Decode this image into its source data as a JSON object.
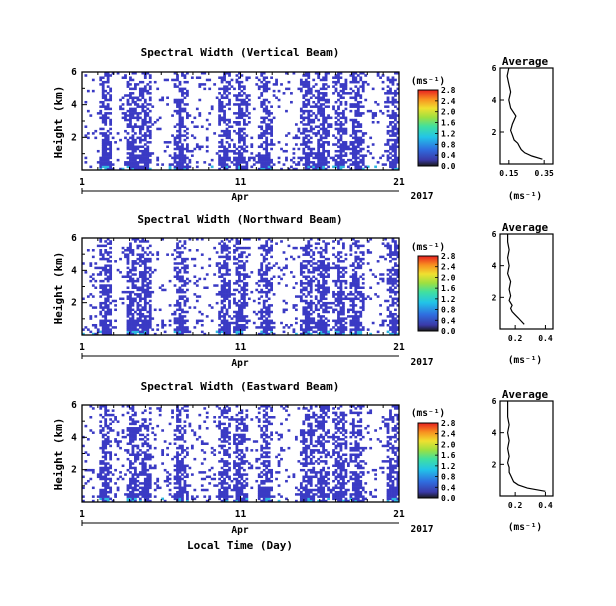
{
  "chart_data": [
    {
      "type": "heatmap",
      "title": "Spectral Width (Vertical Beam)",
      "ylabel": "Height (km)",
      "yticks": [
        "6",
        "4",
        "2"
      ],
      "xticks": [
        "1",
        "11",
        "21"
      ],
      "month_label": "Apr",
      "year_label": "2017",
      "colorbar": {
        "unit": "(ms⁻¹)",
        "ticks": [
          "2.8",
          "2.4",
          "2.0",
          "1.6",
          "1.2",
          "0.8",
          "0.4",
          "0.0"
        ],
        "range": [
          0,
          2.8
        ]
      },
      "x_range_days": [
        1,
        21
      ],
      "y_range_km": [
        0,
        6
      ],
      "dominant_value_ms": 0.3,
      "average_profile": {
        "title": "Average",
        "xlabel": "(ms⁻¹)",
        "xtick_labels": [
          "0.15",
          "0.35"
        ],
        "xticks": [
          0.15,
          0.35
        ],
        "xlim": [
          0.1,
          0.4
        ],
        "yticks": [
          "6",
          "4",
          "2"
        ],
        "ylim": [
          0,
          6
        ],
        "height_km": [
          0.3,
          0.5,
          0.7,
          0.9,
          1.1,
          1.3,
          1.5,
          1.8,
          2.1,
          2.5,
          3.0,
          3.5,
          4.0,
          4.5,
          5.0,
          5.5,
          6.0
        ],
        "width_ms": [
          0.34,
          0.28,
          0.24,
          0.22,
          0.21,
          0.2,
          0.18,
          0.17,
          0.16,
          0.17,
          0.19,
          0.16,
          0.15,
          0.16,
          0.15,
          0.14,
          0.15
        ]
      }
    },
    {
      "type": "heatmap",
      "title": "Spectral Width (Northward Beam)",
      "ylabel": "Height (km)",
      "yticks": [
        "6",
        "4",
        "2"
      ],
      "xticks": [
        "1",
        "11",
        "21"
      ],
      "month_label": "Apr",
      "year_label": "2017",
      "colorbar": {
        "unit": "(ms⁻¹)",
        "ticks": [
          "2.8",
          "2.4",
          "2.0",
          "1.6",
          "1.2",
          "0.8",
          "0.4",
          "0.0"
        ],
        "range": [
          0,
          2.8
        ]
      },
      "x_range_days": [
        1,
        21
      ],
      "y_range_km": [
        0,
        6
      ],
      "dominant_value_ms": 0.3,
      "average_profile": {
        "title": "Average",
        "xlabel": "(ms⁻¹)",
        "xtick_labels": [
          "0.2",
          "0.4"
        ],
        "xticks": [
          0.2,
          0.4
        ],
        "xlim": [
          0.1,
          0.45
        ],
        "yticks": [
          "6",
          "4",
          "2"
        ],
        "ylim": [
          0,
          6
        ],
        "height_km": [
          0.3,
          0.5,
          0.7,
          0.9,
          1.1,
          1.3,
          1.5,
          1.8,
          2.1,
          2.5,
          3.0,
          3.5,
          4.0,
          4.5,
          5.0,
          5.5,
          6.0
        ],
        "width_ms": [
          0.26,
          0.24,
          0.22,
          0.2,
          0.18,
          0.17,
          0.18,
          0.16,
          0.17,
          0.16,
          0.17,
          0.15,
          0.16,
          0.15,
          0.16,
          0.15,
          0.15
        ]
      }
    },
    {
      "type": "heatmap",
      "title": "Spectral Width (Eastward Beam)",
      "ylabel": "Height (km)",
      "xlabel": "Local Time (Day)",
      "yticks": [
        "6",
        "4",
        "2"
      ],
      "xticks": [
        "1",
        "11",
        "21"
      ],
      "month_label": "Apr",
      "year_label": "2017",
      "colorbar": {
        "unit": "(ms⁻¹)",
        "ticks": [
          "2.8",
          "2.4",
          "2.0",
          "1.6",
          "1.2",
          "0.8",
          "0.4",
          "0.0"
        ],
        "range": [
          0,
          2.8
        ]
      },
      "x_range_days": [
        1,
        21
      ],
      "y_range_km": [
        0,
        6
      ],
      "dominant_value_ms": 0.3,
      "average_profile": {
        "title": "Average",
        "xlabel": "(ms⁻¹)",
        "xtick_labels": [
          "0.2",
          "0.4"
        ],
        "xticks": [
          0.2,
          0.4
        ],
        "xlim": [
          0.1,
          0.45
        ],
        "yticks": [
          "6",
          "4",
          "2"
        ],
        "ylim": [
          0,
          6
        ],
        "height_km": [
          0.3,
          0.5,
          0.7,
          0.9,
          1.1,
          1.3,
          1.5,
          1.8,
          2.1,
          2.5,
          3.0,
          3.5,
          4.0,
          4.5,
          5.0,
          5.5,
          6.0
        ],
        "width_ms": [
          0.4,
          0.28,
          0.22,
          0.19,
          0.18,
          0.17,
          0.16,
          0.16,
          0.15,
          0.16,
          0.15,
          0.16,
          0.15,
          0.16,
          0.15,
          0.15,
          0.15
        ]
      }
    }
  ]
}
